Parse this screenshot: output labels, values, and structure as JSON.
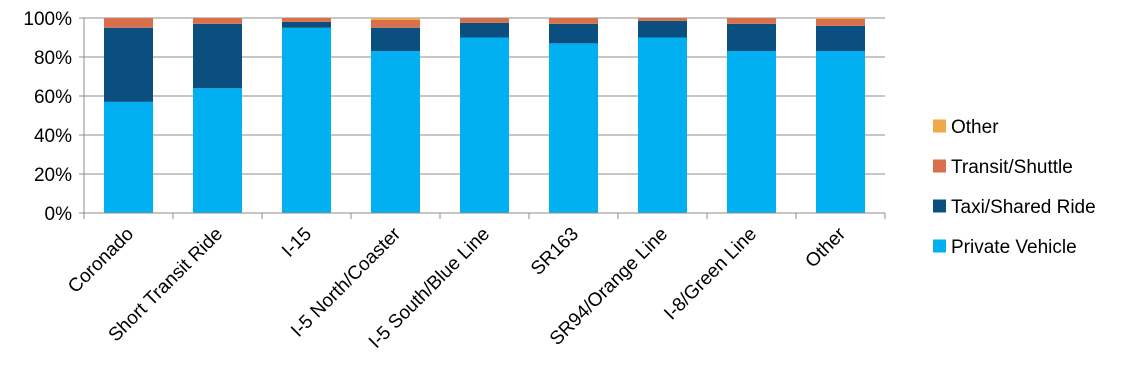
{
  "chart_data": {
    "type": "bar",
    "stacked": true,
    "percent_axis": true,
    "categories": [
      "Coronado",
      "Short Transit Ride",
      "I-15",
      "I-5 North/Coaster",
      "I-5 South/Blue Line",
      "SR163",
      "SR94/Orange Line",
      "I-8/Green Line",
      "Other"
    ],
    "series": [
      {
        "name": "Private Vehicle",
        "color": "#00B0F0",
        "values": [
          57,
          64,
          95,
          83,
          90,
          87,
          90,
          83,
          83
        ]
      },
      {
        "name": "Taxi/Shared Ride",
        "color": "#0B4F80",
        "values": [
          38,
          33,
          3,
          12,
          7.5,
          10,
          8.5,
          14,
          13
        ]
      },
      {
        "name": "Transit/Shuttle",
        "color": "#D9704C",
        "values": [
          5,
          3,
          2,
          4,
          2.5,
          3,
          1.5,
          3,
          3.5
        ]
      },
      {
        "name": "Other",
        "color": "#F0A848",
        "values": [
          0,
          0,
          0,
          1,
          0,
          0,
          0,
          0,
          0.5
        ]
      }
    ],
    "y_ticks": [
      "0%",
      "20%",
      "40%",
      "60%",
      "80%",
      "100%"
    ],
    "ylim": [
      0,
      100
    ],
    "grid": true,
    "legend_position": "right",
    "legend_order": [
      "Other",
      "Transit/Shuttle",
      "Taxi/Shared Ride",
      "Private Vehicle"
    ],
    "title": "",
    "xlabel": "",
    "ylabel": ""
  }
}
